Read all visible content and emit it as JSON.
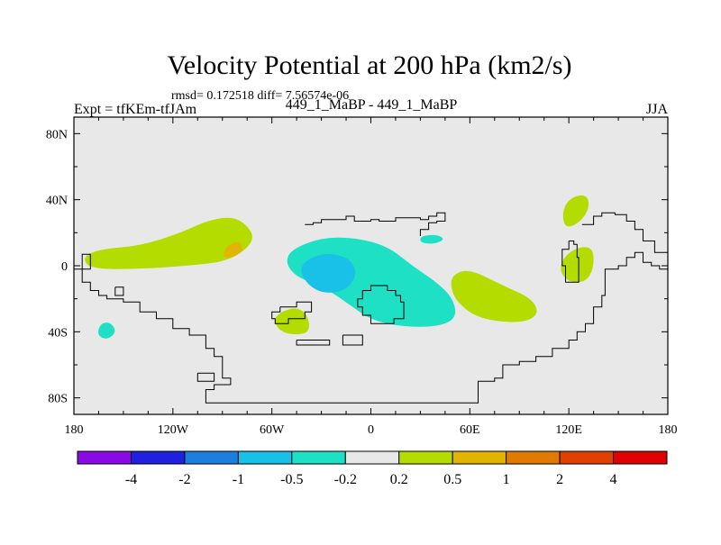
{
  "title": "Velocity Potential at 200 hPa (km2/s)",
  "stats_line": "rmsd= 0.172518 diff= 7.56574e-06",
  "left_label": "Expt = tfKEm-tfJAm",
  "center_label": "449_1_MaBP - 449_1_MaBP",
  "right_label": "JJA",
  "colors": {
    "land_fill": "#e8e8e8",
    "coast": "#000000"
  },
  "axes": {
    "lon_range": [
      -180,
      180
    ],
    "lat_range": [
      -90,
      90
    ],
    "x_ticks": [
      {
        "value": -180,
        "label": "180"
      },
      {
        "value": -120,
        "label": "120W"
      },
      {
        "value": -60,
        "label": "60W"
      },
      {
        "value": 0,
        "label": "0"
      },
      {
        "value": 60,
        "label": "60E"
      },
      {
        "value": 120,
        "label": "120E"
      },
      {
        "value": 180,
        "label": "180"
      }
    ],
    "y_ticks": [
      {
        "value": 80,
        "label": "80N"
      },
      {
        "value": 40,
        "label": "40N"
      },
      {
        "value": 0,
        "label": "0"
      },
      {
        "value": -40,
        "label": "40S"
      },
      {
        "value": -80,
        "label": "80S"
      }
    ]
  },
  "colorbar": {
    "bins": [
      {
        "color": "#8a0ae6"
      },
      {
        "color": "#2020e0"
      },
      {
        "color": "#1e7ee0"
      },
      {
        "color": "#19c0e8"
      },
      {
        "color": "#1ee0c4"
      },
      {
        "color": "#e8e8e8"
      },
      {
        "color": "#b4dc00"
      },
      {
        "color": "#e0b400"
      },
      {
        "color": "#e07a00"
      },
      {
        "color": "#e04000"
      },
      {
        "color": "#e00000"
      }
    ],
    "labels": [
      "-4",
      "-2",
      "-1",
      "-0.5",
      "-0.2",
      "0.2",
      "0.5",
      "1",
      "2",
      "4"
    ]
  },
  "contours": [
    {
      "level": "0.2 to 0.5",
      "color": "#b4dc00",
      "points": [
        [
          -175,
          5
        ],
        [
          -165,
          10
        ],
        [
          -140,
          12
        ],
        [
          -115,
          20
        ],
        [
          -100,
          27
        ],
        [
          -85,
          30
        ],
        [
          -75,
          25
        ],
        [
          -70,
          15
        ],
        [
          -85,
          3
        ],
        [
          -110,
          0
        ],
        [
          -140,
          -2
        ],
        [
          -170,
          -2
        ]
      ]
    },
    {
      "level": "0.5 to 1",
      "color": "#e0b400",
      "points": [
        [
          -85,
          13
        ],
        [
          -80,
          15
        ],
        [
          -77,
          10
        ],
        [
          -83,
          5
        ],
        [
          -90,
          5
        ],
        [
          -88,
          11
        ]
      ]
    },
    {
      "level": "0.2 to 0.5",
      "color": "#b4dc00",
      "points": [
        [
          -55,
          -28
        ],
        [
          -45,
          -25
        ],
        [
          -38,
          -30
        ],
        [
          -37,
          -40
        ],
        [
          -45,
          -42
        ],
        [
          -55,
          -40
        ],
        [
          -59,
          -33
        ]
      ]
    },
    {
      "level": "-0.5 to -0.2",
      "color": "#1ee0c4",
      "points": [
        [
          -48,
          10
        ],
        [
          -30,
          17
        ],
        [
          -10,
          17
        ],
        [
          10,
          12
        ],
        [
          25,
          0
        ],
        [
          40,
          -10
        ],
        [
          50,
          -20
        ],
        [
          52,
          -32
        ],
        [
          40,
          -37
        ],
        [
          20,
          -37
        ],
        [
          0,
          -33
        ],
        [
          -15,
          -22
        ],
        [
          -30,
          -12
        ],
        [
          -45,
          -7
        ],
        [
          -52,
          2
        ]
      ]
    },
    {
      "level": "-1 to -0.5",
      "color": "#19c0e8",
      "points": [
        [
          -40,
          3
        ],
        [
          -28,
          8
        ],
        [
          -13,
          5
        ],
        [
          -8,
          -5
        ],
        [
          -15,
          -15
        ],
        [
          -28,
          -17
        ],
        [
          -38,
          -12
        ],
        [
          -43,
          -3
        ]
      ]
    },
    {
      "level": "-0.5 to -0.2",
      "color": "#1ee0c4",
      "points": [
        [
          30,
          18
        ],
        [
          40,
          19
        ],
        [
          45,
          16
        ],
        [
          38,
          13
        ],
        [
          30,
          14
        ]
      ]
    },
    {
      "level": "0.2 to 0.5",
      "color": "#b4dc00",
      "points": [
        [
          50,
          -5
        ],
        [
          60,
          -2
        ],
        [
          80,
          -12
        ],
        [
          98,
          -20
        ],
        [
          102,
          -30
        ],
        [
          90,
          -35
        ],
        [
          65,
          -32
        ],
        [
          52,
          -22
        ],
        [
          48,
          -12
        ]
      ]
    },
    {
      "level": "0.2 to 0.5",
      "color": "#b4dc00",
      "points": [
        [
          118,
          38
        ],
        [
          125,
          43
        ],
        [
          132,
          42
        ],
        [
          132,
          33
        ],
        [
          125,
          25
        ],
        [
          118,
          23
        ],
        [
          116,
          30
        ]
      ]
    },
    {
      "level": "0.2 to 0.5",
      "color": "#b4dc00",
      "points": [
        [
          118,
          7
        ],
        [
          128,
          12
        ],
        [
          135,
          10
        ],
        [
          135,
          -2
        ],
        [
          130,
          -10
        ],
        [
          120,
          -10
        ],
        [
          114,
          -3
        ]
      ]
    },
    {
      "level": "-0.5 to -0.2",
      "color": "#1ee0c4",
      "points": [
        [
          -164,
          -35
        ],
        [
          -158,
          -34
        ],
        [
          -154,
          -40
        ],
        [
          -160,
          -45
        ],
        [
          -166,
          -42
        ]
      ]
    }
  ],
  "coastlines": [
    [
      [
        -180,
        -2
      ],
      [
        -175,
        -2
      ],
      [
        -175,
        7
      ],
      [
        -170,
        7
      ],
      [
        -170,
        -2
      ],
      [
        -175,
        -2
      ],
      [
        -175,
        -10
      ],
      [
        -170,
        -15
      ],
      [
        -165,
        -18
      ],
      [
        -160,
        -20
      ],
      [
        -150,
        -22
      ],
      [
        -140,
        -28
      ],
      [
        -130,
        -32
      ],
      [
        -120,
        -38
      ],
      [
        -110,
        -42
      ],
      [
        -100,
        -50
      ],
      [
        -95,
        -55
      ],
      [
        -90,
        -60
      ],
      [
        -90,
        -68
      ],
      [
        -85,
        -72
      ],
      [
        -95,
        -75
      ],
      [
        -100,
        -80
      ],
      [
        -100,
        -83
      ],
      [
        -80,
        -83
      ],
      [
        -60,
        -83
      ],
      [
        -40,
        -83
      ],
      [
        -20,
        -83
      ],
      [
        0,
        -83
      ],
      [
        20,
        -83
      ],
      [
        40,
        -83
      ],
      [
        60,
        -83
      ],
      [
        65,
        -80
      ],
      [
        65,
        -70
      ],
      [
        75,
        -68
      ],
      [
        80,
        -60
      ],
      [
        90,
        -58
      ],
      [
        100,
        -55
      ],
      [
        110,
        -50
      ],
      [
        120,
        -45
      ],
      [
        125,
        -40
      ],
      [
        130,
        -35
      ],
      [
        135,
        -25
      ],
      [
        140,
        -18
      ],
      [
        142,
        -10
      ],
      [
        142,
        -2
      ],
      [
        150,
        0
      ],
      [
        155,
        5
      ],
      [
        160,
        8
      ],
      [
        165,
        2
      ],
      [
        170,
        0
      ],
      [
        175,
        -2
      ],
      [
        180,
        -2
      ]
    ],
    [
      [
        -40,
        25
      ],
      [
        -35,
        26
      ],
      [
        -30,
        28
      ],
      [
        -20,
        28
      ],
      [
        -15,
        30
      ],
      [
        -10,
        27
      ],
      [
        -5,
        27
      ],
      [
        0,
        28
      ],
      [
        5,
        27
      ],
      [
        10,
        27
      ],
      [
        15,
        29
      ],
      [
        20,
        29
      ],
      [
        25,
        29
      ],
      [
        30,
        28
      ],
      [
        35,
        30
      ],
      [
        40,
        32
      ],
      [
        45,
        31
      ],
      [
        45,
        27
      ],
      [
        40,
        26
      ],
      [
        35,
        22
      ],
      [
        30,
        18
      ]
    ],
    [
      [
        -55,
        -25
      ],
      [
        -45,
        -22
      ],
      [
        -38,
        -22
      ],
      [
        -36,
        -28
      ],
      [
        -40,
        -32
      ],
      [
        -50,
        -35
      ],
      [
        -58,
        -32
      ],
      [
        -60,
        -28
      ],
      [
        -55,
        -25
      ]
    ],
    [
      [
        -45,
        -45
      ],
      [
        -25,
        -45
      ],
      [
        -25,
        -48
      ],
      [
        -45,
        -48
      ],
      [
        -45,
        -45
      ]
    ],
    [
      [
        -17,
        -42
      ],
      [
        -5,
        -42
      ],
      [
        -5,
        -48
      ],
      [
        -17,
        -48
      ],
      [
        -17,
        -42
      ]
    ],
    [
      [
        -5,
        -15
      ],
      [
        0,
        -12
      ],
      [
        5,
        -12
      ],
      [
        10,
        -15
      ],
      [
        15,
        -18
      ],
      [
        18,
        -22
      ],
      [
        20,
        -32
      ],
      [
        14,
        -35
      ],
      [
        6,
        -35
      ],
      [
        0,
        -30
      ],
      [
        -5,
        -25
      ],
      [
        -8,
        -20
      ],
      [
        -5,
        -15
      ]
    ],
    [
      [
        128,
        25
      ],
      [
        135,
        30
      ],
      [
        140,
        32
      ],
      [
        148,
        31
      ],
      [
        155,
        27
      ],
      [
        160,
        22
      ],
      [
        165,
        15
      ],
      [
        172,
        8
      ],
      [
        180,
        5
      ]
    ],
    [
      [
        120,
        15
      ],
      [
        123,
        13
      ],
      [
        125,
        5
      ],
      [
        126,
        -10
      ],
      [
        118,
        -10
      ],
      [
        118,
        0
      ],
      [
        116,
        10
      ],
      [
        120,
        15
      ]
    ],
    [
      [
        -155,
        -13
      ],
      [
        -150,
        -13
      ],
      [
        -150,
        -18
      ],
      [
        -155,
        -18
      ],
      [
        -155,
        -13
      ]
    ],
    [
      [
        -105,
        -65
      ],
      [
        -95,
        -65
      ],
      [
        -95,
        -70
      ],
      [
        -105,
        -70
      ],
      [
        -105,
        -65
      ]
    ]
  ]
}
